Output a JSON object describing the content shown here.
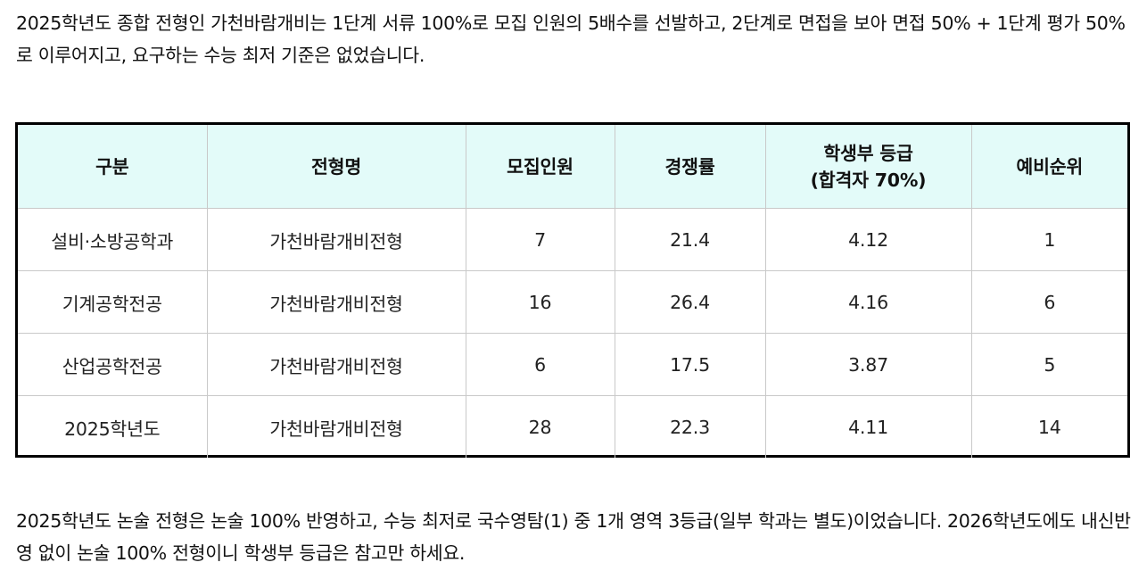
{
  "paragraph_top": "2025학년도 종합 전형인 가천바람개비는 1단계 서류 100%로 모집 인원의 5배수를 선발하고, 2단계로 면접을 보아 면접 50% + 1단계 평가 50%로 이루어지고, 요구하는 수능 최저 기준은 없었습니다.",
  "table": {
    "headers": [
      {
        "line1": "구분",
        "line2": ""
      },
      {
        "line1": "전형명",
        "line2": ""
      },
      {
        "line1": "모집인원",
        "line2": ""
      },
      {
        "line1": "경쟁률",
        "line2": ""
      },
      {
        "line1": "학생부 등급",
        "line2": "(합격자 70%)"
      },
      {
        "line1": "예비순위",
        "line2": ""
      }
    ],
    "rows": [
      [
        "설비·소방공학과",
        "가천바람개비전형",
        "7",
        "21.4",
        "4.12",
        "1"
      ],
      [
        "기계공학전공",
        "가천바람개비전형",
        "16",
        "26.4",
        "4.16",
        "6"
      ],
      [
        "산업공학전공",
        "가천바람개비전형",
        "6",
        "17.5",
        "3.87",
        "5"
      ],
      [
        "2025학년도",
        "가천바람개비전형",
        "28",
        "22.3",
        "4.11",
        "14"
      ]
    ]
  },
  "paragraph_bottom": "2025학년도 논술 전형은 논술 100% 반영하고, 수능 최저로 국수영탐(1) 중 1개 영역 3등급(일부 학과는 별도)이었습니다. 2026학년도에도 내신반영 없이 논술 100% 전형이니 학생부 등급은 참고만 하세요."
}
